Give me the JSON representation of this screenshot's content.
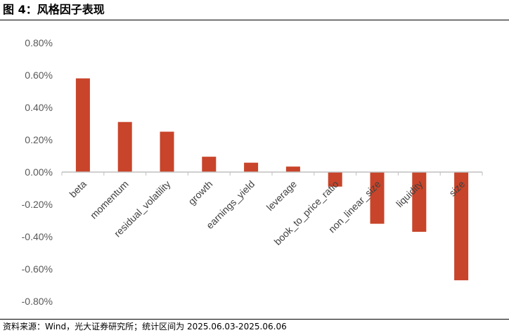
{
  "figure": {
    "title": "图 4：风格因子表现",
    "source": "资料来源：Wind，光大证券研究所；统计区间为 2025.06.03-2025.06.06"
  },
  "colors": {
    "bar": "#C8442A",
    "axis": "#BFBFBF"
  },
  "chart_data": {
    "type": "bar",
    "categories": [
      "beta",
      "momentum",
      "residual_volatility",
      "growth",
      "earnings_yield",
      "leverage",
      "book_to_price_ratio",
      "non_linear_size",
      "liquidity",
      "size"
    ],
    "values": [
      0.58,
      0.31,
      0.25,
      0.095,
      0.058,
      0.034,
      -0.09,
      -0.32,
      -0.37,
      -0.67
    ],
    "yticks": [
      "0.80%",
      "0.60%",
      "0.40%",
      "0.20%",
      "0.00%",
      "-0.20%",
      "-0.40%",
      "-0.60%",
      "-0.80%"
    ],
    "ytick_values": [
      0.8,
      0.6,
      0.4,
      0.2,
      0.0,
      -0.2,
      -0.4,
      -0.6,
      -0.8
    ],
    "ylim": [
      -0.8,
      0.8
    ],
    "yunit": "%",
    "grid": false,
    "legend": "none"
  }
}
